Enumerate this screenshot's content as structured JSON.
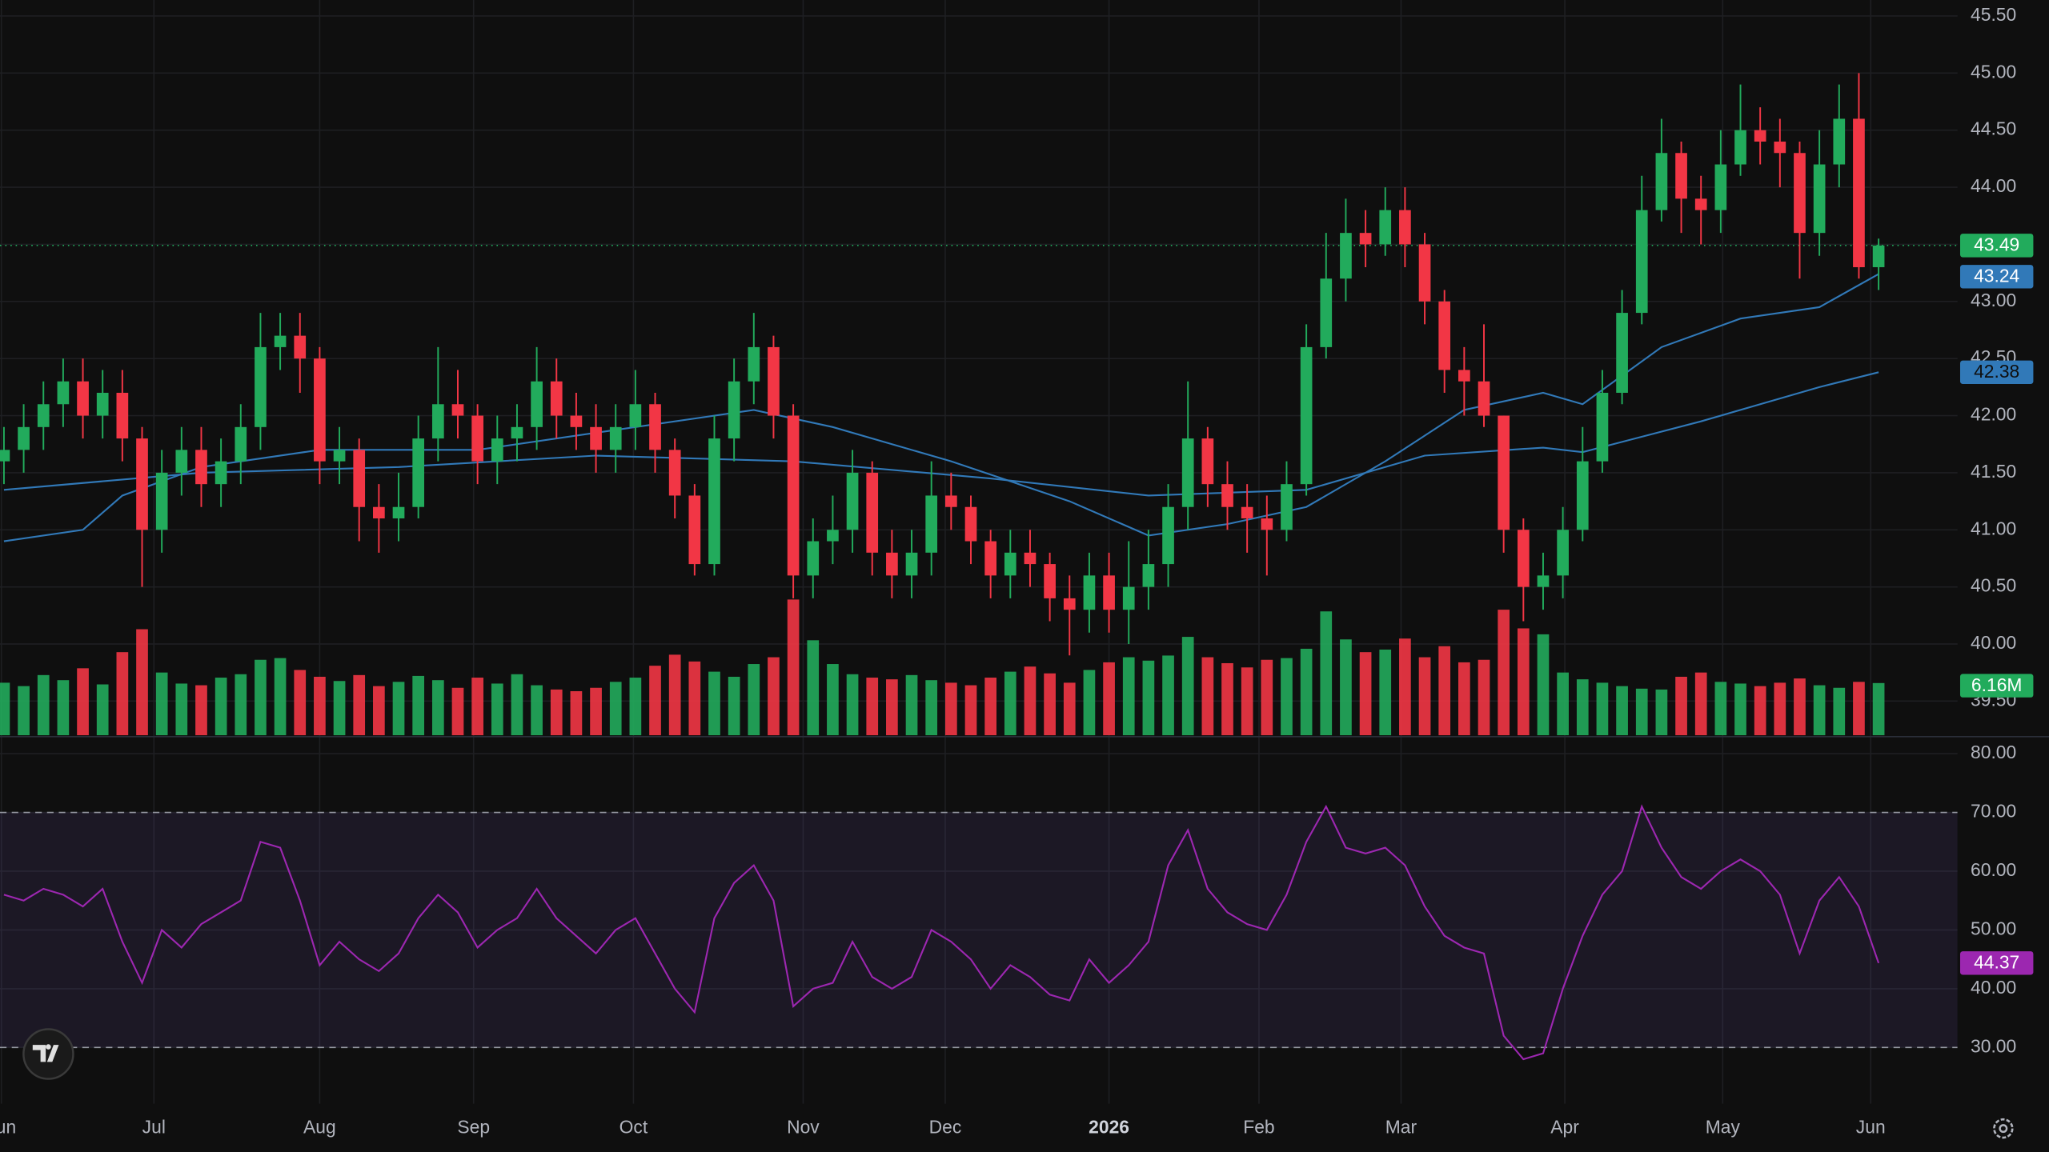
{
  "chart_data": {
    "type": "candlestick",
    "xlim": [
      -0.2,
      99
    ],
    "xticks": [
      {
        "value": -0.13,
        "label": "Jun"
      },
      {
        "value": 7.6,
        "label": "Jul"
      },
      {
        "value": 16,
        "label": "Aug"
      },
      {
        "value": 23.8,
        "label": "Sep"
      },
      {
        "value": 31.9,
        "label": "Oct"
      },
      {
        "value": 40.5,
        "label": "Nov"
      },
      {
        "value": 47.7,
        "label": "Dec"
      },
      {
        "value": 56,
        "label": "2026"
      },
      {
        "value": 63.6,
        "label": "Feb"
      },
      {
        "value": 70.8,
        "label": "Mar"
      },
      {
        "value": 79.1,
        "label": "Apr"
      },
      {
        "value": 87.1,
        "label": "May"
      },
      {
        "value": 94.6,
        "label": "Jun"
      }
    ],
    "ylim": [
      39.2,
      45.64
    ],
    "yticks": [
      {
        "value": 39.5,
        "label": "39.50"
      },
      {
        "value": 40,
        "label": "40.00"
      },
      {
        "value": 40.5,
        "label": "40.50"
      },
      {
        "value": 41,
        "label": "41.00"
      },
      {
        "value": 41.5,
        "label": "41.50"
      },
      {
        "value": 42,
        "label": "42.00"
      },
      {
        "value": 42.5,
        "label": "42.50"
      },
      {
        "value": 43,
        "label": "43.00"
      },
      {
        "value": 43.5,
        "label": "43.50"
      },
      {
        "value": 44,
        "label": "44.00"
      },
      {
        "value": 44.5,
        "label": "44.50"
      },
      {
        "value": 45,
        "label": "45.00"
      },
      {
        "value": 45.5,
        "label": "45.50"
      }
    ],
    "grid": true,
    "up_color": "#22ab5c",
    "down_color": "#f23645",
    "open": [
      41.6,
      41.7,
      41.9,
      42.1,
      42.3,
      42.0,
      42.2,
      41.8,
      41.0,
      41.5,
      41.7,
      41.4,
      41.6,
      41.9,
      42.6,
      42.7,
      42.5,
      41.6,
      41.7,
      41.2,
      41.1,
      41.2,
      41.8,
      42.1,
      42.0,
      41.6,
      41.8,
      41.9,
      42.3,
      42.0,
      41.9,
      41.7,
      41.9,
      42.1,
      41.7,
      41.3,
      40.7,
      41.8,
      42.3,
      42.6,
      42.0,
      40.6,
      40.9,
      41.0,
      41.5,
      40.8,
      40.6,
      40.8,
      41.3,
      41.2,
      40.9,
      40.6,
      40.8,
      40.7,
      40.4,
      40.3,
      40.6,
      40.3,
      40.5,
      40.7,
      41.2,
      41.8,
      41.4,
      41.2,
      41.1,
      41.0,
      41.4,
      42.6,
      43.2,
      43.6,
      43.5,
      43.8,
      43.5,
      43.0,
      42.4,
      42.3,
      42.0,
      41.0,
      40.5,
      40.6,
      41.0,
      41.6,
      42.2,
      42.9,
      43.8,
      44.3,
      43.9,
      43.8,
      44.2,
      44.5,
      44.4,
      44.3,
      43.6,
      44.2,
      44.6,
      43.3
    ],
    "high": [
      41.9,
      42.1,
      42.3,
      42.5,
      42.5,
      42.4,
      42.4,
      41.9,
      41.7,
      41.9,
      41.9,
      41.8,
      42.1,
      42.9,
      42.9,
      42.9,
      42.6,
      41.9,
      41.8,
      41.4,
      41.5,
      42.0,
      42.6,
      42.4,
      42.1,
      42.0,
      42.1,
      42.6,
      42.5,
      42.2,
      42.1,
      42.1,
      42.4,
      42.2,
      41.8,
      41.4,
      42.0,
      42.5,
      42.9,
      42.7,
      42.1,
      41.1,
      41.3,
      41.7,
      41.6,
      41.0,
      41.0,
      41.6,
      41.5,
      41.3,
      41.0,
      41.0,
      41.0,
      40.8,
      40.6,
      40.8,
      40.8,
      40.9,
      41.0,
      41.4,
      42.3,
      41.9,
      41.6,
      41.4,
      41.3,
      41.6,
      42.8,
      43.6,
      43.9,
      43.8,
      44.0,
      44.0,
      43.6,
      43.1,
      42.6,
      42.8,
      42.0,
      41.1,
      40.8,
      41.2,
      41.9,
      42.4,
      43.1,
      44.1,
      44.6,
      44.4,
      44.1,
      44.5,
      44.9,
      44.7,
      44.6,
      44.4,
      44.5,
      44.9,
      45.0,
      43.55
    ],
    "low": [
      41.4,
      41.5,
      41.7,
      41.9,
      41.8,
      41.8,
      41.6,
      40.5,
      40.8,
      41.3,
      41.2,
      41.2,
      41.4,
      41.7,
      42.4,
      42.2,
      41.4,
      41.4,
      40.9,
      40.8,
      40.9,
      41.1,
      41.6,
      41.8,
      41.4,
      41.4,
      41.6,
      41.7,
      41.8,
      41.7,
      41.5,
      41.5,
      41.7,
      41.5,
      41.1,
      40.6,
      40.6,
      41.6,
      42.1,
      41.8,
      40.4,
      40.4,
      40.7,
      40.8,
      40.6,
      40.4,
      40.4,
      40.6,
      41.0,
      40.7,
      40.4,
      40.4,
      40.5,
      40.2,
      39.9,
      40.1,
      40.1,
      40.0,
      40.3,
      40.5,
      41.0,
      41.2,
      41.0,
      40.8,
      40.6,
      40.9,
      41.3,
      42.5,
      43.0,
      43.3,
      43.4,
      43.3,
      42.8,
      42.2,
      42.0,
      41.9,
      40.8,
      40.2,
      40.3,
      40.4,
      40.9,
      41.5,
      42.1,
      42.8,
      43.7,
      43.6,
      43.5,
      43.6,
      44.1,
      44.2,
      44.0,
      43.2,
      43.4,
      44.0,
      43.2,
      43.1
    ],
    "close": [
      41.7,
      41.9,
      42.1,
      42.3,
      42.0,
      42.2,
      41.8,
      41.0,
      41.5,
      41.7,
      41.4,
      41.6,
      41.9,
      42.6,
      42.7,
      42.5,
      41.6,
      41.7,
      41.2,
      41.1,
      41.2,
      41.8,
      42.1,
      42.0,
      41.6,
      41.8,
      41.9,
      42.3,
      42.0,
      41.9,
      41.7,
      41.9,
      42.1,
      41.7,
      41.3,
      40.7,
      41.8,
      42.3,
      42.6,
      42.0,
      40.6,
      40.9,
      41.0,
      41.5,
      40.8,
      40.6,
      40.8,
      41.3,
      41.2,
      40.9,
      40.6,
      40.8,
      40.7,
      40.4,
      40.3,
      40.6,
      40.3,
      40.5,
      40.7,
      41.2,
      41.8,
      41.4,
      41.2,
      41.1,
      41.0,
      41.4,
      42.6,
      43.2,
      43.6,
      43.5,
      43.8,
      43.5,
      43.0,
      42.4,
      42.3,
      42.0,
      41.0,
      40.5,
      40.6,
      41.0,
      41.6,
      42.2,
      42.9,
      43.8,
      44.3,
      43.9,
      43.8,
      44.2,
      44.5,
      44.4,
      44.3,
      43.6,
      44.2,
      44.6,
      43.3,
      43.49
    ],
    "volume": {
      "ylim": [
        0,
        40
      ],
      "last_label": "6.16M",
      "values": [
        6.2,
        5.8,
        7.1,
        6.5,
        7.9,
        6.0,
        9.8,
        12.5,
        7.4,
        6.1,
        5.9,
        6.8,
        7.2,
        8.9,
        9.1,
        7.7,
        6.9,
        6.4,
        7.1,
        5.8,
        6.3,
        7.0,
        6.5,
        5.6,
        6.8,
        6.1,
        7.2,
        5.9,
        5.4,
        5.2,
        5.6,
        6.3,
        6.8,
        8.2,
        9.5,
        8.7,
        7.5,
        6.9,
        8.4,
        9.2,
        16.0,
        11.2,
        8.4,
        7.2,
        6.8,
        6.6,
        7.1,
        6.5,
        6.2,
        5.9,
        6.8,
        7.5,
        8.1,
        7.3,
        6.2,
        7.7,
        8.6,
        9.2,
        8.8,
        9.4,
        11.6,
        9.2,
        8.5,
        8.0,
        8.9,
        9.1,
        10.2,
        14.6,
        11.3,
        9.8,
        10.1,
        11.4,
        9.2,
        10.5,
        8.6,
        8.9,
        14.8,
        12.6,
        11.9,
        7.4,
        6.6,
        6.2,
        5.8,
        5.5,
        5.4,
        6.9,
        7.4,
        6.3,
        6.1,
        5.8,
        6.2,
        6.7,
        5.9,
        5.6,
        6.3,
        6.16
      ]
    },
    "ma_fast": {
      "color": "#3179b8",
      "x": [
        0,
        4,
        6,
        10,
        16,
        24,
        30,
        38,
        42,
        48,
        54,
        58,
        62,
        66,
        70,
        74,
        78,
        80,
        84,
        88,
        92,
        95
      ],
      "values": [
        40.9,
        41.0,
        41.3,
        41.55,
        41.7,
        41.7,
        41.85,
        42.05,
        41.9,
        41.6,
        41.25,
        40.95,
        41.05,
        41.2,
        41.6,
        42.05,
        42.2,
        42.1,
        42.6,
        42.85,
        42.95,
        43.24
      ]
    },
    "ma_slow": {
      "color": "#3179b8",
      "x": [
        0,
        10,
        20,
        30,
        40,
        50,
        58,
        66,
        72,
        78,
        80,
        86,
        92,
        95
      ],
      "values": [
        41.35,
        41.5,
        41.55,
        41.65,
        41.6,
        41.45,
        41.3,
        41.35,
        41.65,
        41.72,
        41.68,
        41.95,
        42.25,
        42.38
      ]
    },
    "rsi": {
      "color": "#9c27b0",
      "band_color": "#7e57c2",
      "upper_band": 70,
      "lower_band": 30,
      "ylim": [
        20.44,
        82.67
      ],
      "yticks": [
        {
          "value": 30,
          "label": "30.00"
        },
        {
          "value": 40,
          "label": "40.00"
        },
        {
          "value": 50,
          "label": "50.00"
        },
        {
          "value": 60,
          "label": "60.00"
        },
        {
          "value": 70,
          "label": "70.00"
        },
        {
          "value": 80,
          "label": "80.00"
        }
      ],
      "values": [
        56,
        55,
        57,
        56,
        54,
        57,
        48,
        41,
        50,
        47,
        51,
        53,
        55,
        65,
        64,
        55,
        44,
        48,
        45,
        43,
        46,
        52,
        56,
        53,
        47,
        50,
        52,
        57,
        52,
        49,
        46,
        50,
        52,
        46,
        40,
        36,
        52,
        58,
        61,
        55,
        37,
        40,
        41,
        48,
        42,
        40,
        42,
        50,
        48,
        45,
        40,
        44,
        42,
        39,
        38,
        45,
        41,
        44,
        48,
        61,
        67,
        57,
        53,
        51,
        50,
        56,
        65,
        71,
        64,
        63,
        64,
        61,
        54,
        49,
        47,
        46,
        32,
        28,
        29,
        40,
        49,
        56,
        60,
        71,
        64,
        59,
        57,
        60,
        62,
        60,
        56,
        46,
        55,
        59,
        54,
        44.37
      ]
    }
  }
}
